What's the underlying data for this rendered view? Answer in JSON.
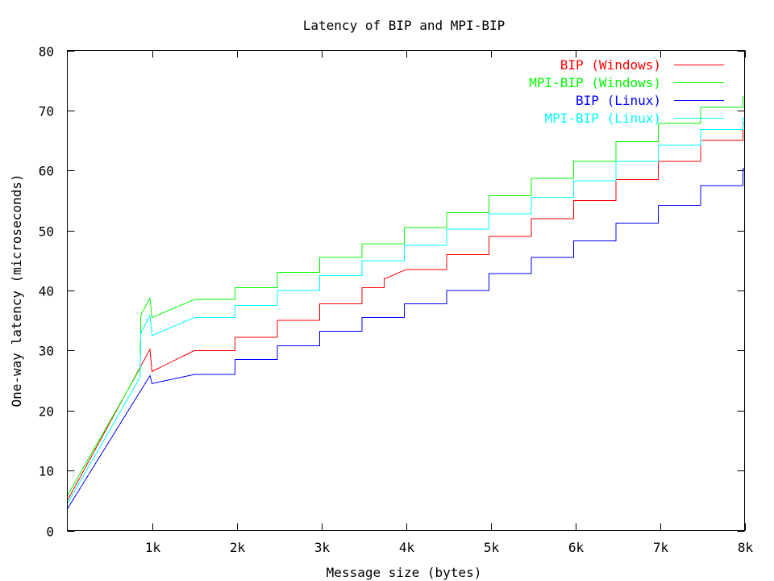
{
  "chart_data": {
    "type": "line",
    "title": "Latency of BIP and MPI-BIP",
    "xlabel": "Message size (bytes)",
    "ylabel": "One-way latency (microseconds)",
    "xlim": [
      0,
      8192
    ],
    "ylim": [
      0,
      80
    ],
    "x_ticks": [
      {
        "value": 1024,
        "label": "1k"
      },
      {
        "value": 2048,
        "label": "2k"
      },
      {
        "value": 3072,
        "label": "3k"
      },
      {
        "value": 4096,
        "label": "4k"
      },
      {
        "value": 5120,
        "label": "5k"
      },
      {
        "value": 6144,
        "label": "6k"
      },
      {
        "value": 7168,
        "label": "7k"
      },
      {
        "value": 8192,
        "label": "8k"
      }
    ],
    "y_ticks": [
      0,
      10,
      20,
      30,
      40,
      50,
      60,
      70,
      80
    ],
    "y_tick_labels": [
      "0",
      "10",
      "20",
      "30",
      "40",
      "50",
      "60",
      "70",
      "80"
    ],
    "grid": false,
    "legend": "top-right",
    "series": [
      {
        "name": "BIP (Windows)",
        "color": "#ff0000",
        "points": [
          [
            0,
            5.0
          ],
          [
            1000,
            30.2
          ],
          [
            1024,
            26.5
          ],
          [
            1536,
            30.0
          ],
          [
            2048,
            32.2
          ],
          [
            2560,
            35.0
          ],
          [
            3072,
            37.8
          ],
          [
            3584,
            40.5
          ],
          [
            3850,
            42.0
          ],
          [
            4096,
            43.5
          ],
          [
            4608,
            46.0
          ],
          [
            5120,
            49.0
          ],
          [
            5632,
            52.0
          ],
          [
            6144,
            55.0
          ],
          [
            6656,
            58.5
          ],
          [
            7168,
            61.5
          ],
          [
            7680,
            65.0
          ],
          [
            8192,
            67.8
          ]
        ]
      },
      {
        "name": "MPI-BIP (Windows)",
        "color": "#00ff00",
        "points": [
          [
            0,
            5.8
          ],
          [
            880,
            27.0
          ],
          [
            890,
            36.0
          ],
          [
            1000,
            38.7
          ],
          [
            1024,
            35.5
          ],
          [
            1536,
            38.5
          ],
          [
            2048,
            40.5
          ],
          [
            2560,
            43.0
          ],
          [
            3072,
            45.5
          ],
          [
            3584,
            47.8
          ],
          [
            4096,
            50.5
          ],
          [
            4608,
            53.0
          ],
          [
            5120,
            55.8
          ],
          [
            5632,
            58.7
          ],
          [
            6144,
            61.5
          ],
          [
            6656,
            64.8
          ],
          [
            7168,
            67.8
          ],
          [
            7680,
            70.5
          ],
          [
            8192,
            72.3
          ]
        ]
      },
      {
        "name": "BIP (Linux)",
        "color": "#0000ff",
        "points": [
          [
            0,
            3.6
          ],
          [
            1000,
            25.8
          ],
          [
            1024,
            24.5
          ],
          [
            1536,
            26.0
          ],
          [
            2048,
            28.5
          ],
          [
            2560,
            30.8
          ],
          [
            3072,
            33.2
          ],
          [
            3584,
            35.5
          ],
          [
            4096,
            37.8
          ],
          [
            4608,
            40.0
          ],
          [
            5120,
            42.8
          ],
          [
            5632,
            45.5
          ],
          [
            6144,
            48.3
          ],
          [
            6656,
            51.2
          ],
          [
            7168,
            54.2
          ],
          [
            7680,
            57.5
          ],
          [
            8192,
            60.3
          ]
        ]
      },
      {
        "name": "MPI-BIP (Linux)",
        "color": "#00ffff",
        "points": [
          [
            0,
            4.5
          ],
          [
            880,
            25.5
          ],
          [
            890,
            33.0
          ],
          [
            1000,
            35.8
          ],
          [
            1024,
            32.5
          ],
          [
            1536,
            35.5
          ],
          [
            2048,
            37.5
          ],
          [
            2560,
            40.0
          ],
          [
            3072,
            42.5
          ],
          [
            3584,
            45.0
          ],
          [
            4096,
            47.5
          ],
          [
            4608,
            50.2
          ],
          [
            5120,
            52.8
          ],
          [
            5632,
            55.5
          ],
          [
            6144,
            58.3
          ],
          [
            6656,
            61.5
          ],
          [
            7168,
            64.2
          ],
          [
            7680,
            66.8
          ],
          [
            8192,
            68.8
          ]
        ]
      }
    ]
  }
}
